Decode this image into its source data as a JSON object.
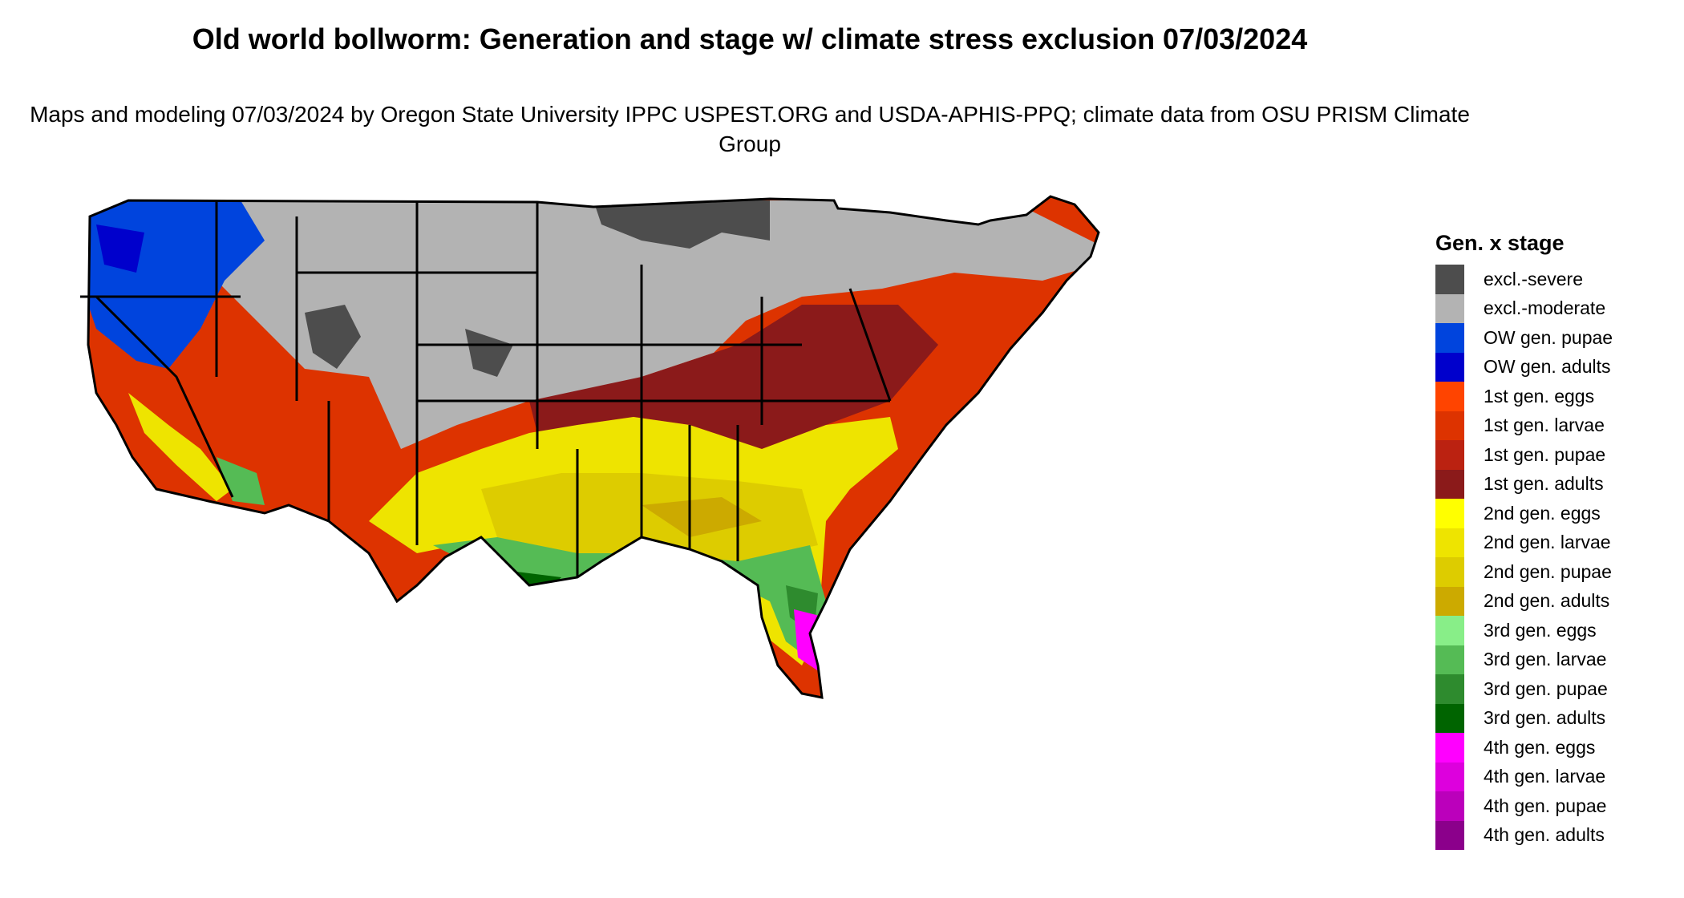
{
  "title": "Old world bollworm: Generation and stage w/ climate stress exclusion 07/03/2024",
  "subtitle": "Maps and modeling 07/03/2024 by Oregon State University IPPC USPEST.ORG and USDA-APHIS-PPQ; climate data from OSU PRISM Climate Group",
  "legend": {
    "title": "Gen. x stage",
    "items": [
      {
        "label": "excl.-severe",
        "color": "#4d4d4d"
      },
      {
        "label": "excl.-moderate",
        "color": "#b3b3b3"
      },
      {
        "label": "OW gen. pupae",
        "color": "#0044dd"
      },
      {
        "label": "OW gen. adults",
        "color": "#0000cc"
      },
      {
        "label": "1st gen. eggs",
        "color": "#ff4400"
      },
      {
        "label": "1st gen. larvae",
        "color": "#dd3300"
      },
      {
        "label": "1st gen. pupae",
        "color": "#bb2211"
      },
      {
        "label": "1st gen. adults",
        "color": "#8b1a1a"
      },
      {
        "label": "2nd gen. eggs",
        "color": "#ffff00"
      },
      {
        "label": "2nd gen. larvae",
        "color": "#eee400"
      },
      {
        "label": "2nd gen. pupae",
        "color": "#ddcc00"
      },
      {
        "label": "2nd gen. adults",
        "color": "#ccaa00"
      },
      {
        "label": "3rd gen. eggs",
        "color": "#88ee88"
      },
      {
        "label": "3rd gen. larvae",
        "color": "#55bb55"
      },
      {
        "label": "3rd gen. pupae",
        "color": "#2e8b2e"
      },
      {
        "label": "3rd gen. adults",
        "color": "#006400"
      },
      {
        "label": "4th gen. eggs",
        "color": "#ff00ff"
      },
      {
        "label": "4th gen. larvae",
        "color": "#dd00dd"
      },
      {
        "label": "4th gen. pupae",
        "color": "#bb00bb"
      },
      {
        "label": "4th gen. adults",
        "color": "#8b008b"
      }
    ]
  }
}
